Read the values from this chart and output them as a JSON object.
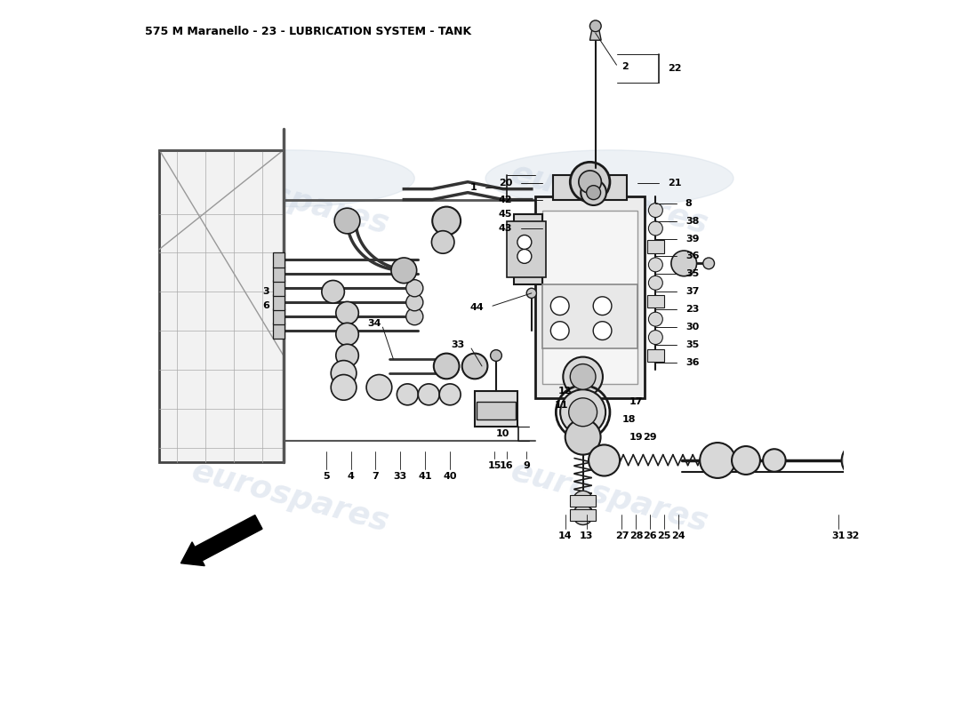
{
  "title": "575 M Maranello - 23 - LUBRICATION SYSTEM - TANK",
  "title_fontsize": 9,
  "title_color": "#000000",
  "background_color": "#ffffff",
  "watermark_text": "eurospares",
  "watermark_color": "#c8d4e4",
  "watermark_alpha": 0.45,
  "line_color": "#1a1a1a",
  "fig_width": 11.0,
  "fig_height": 8.0,
  "dpi": 100
}
